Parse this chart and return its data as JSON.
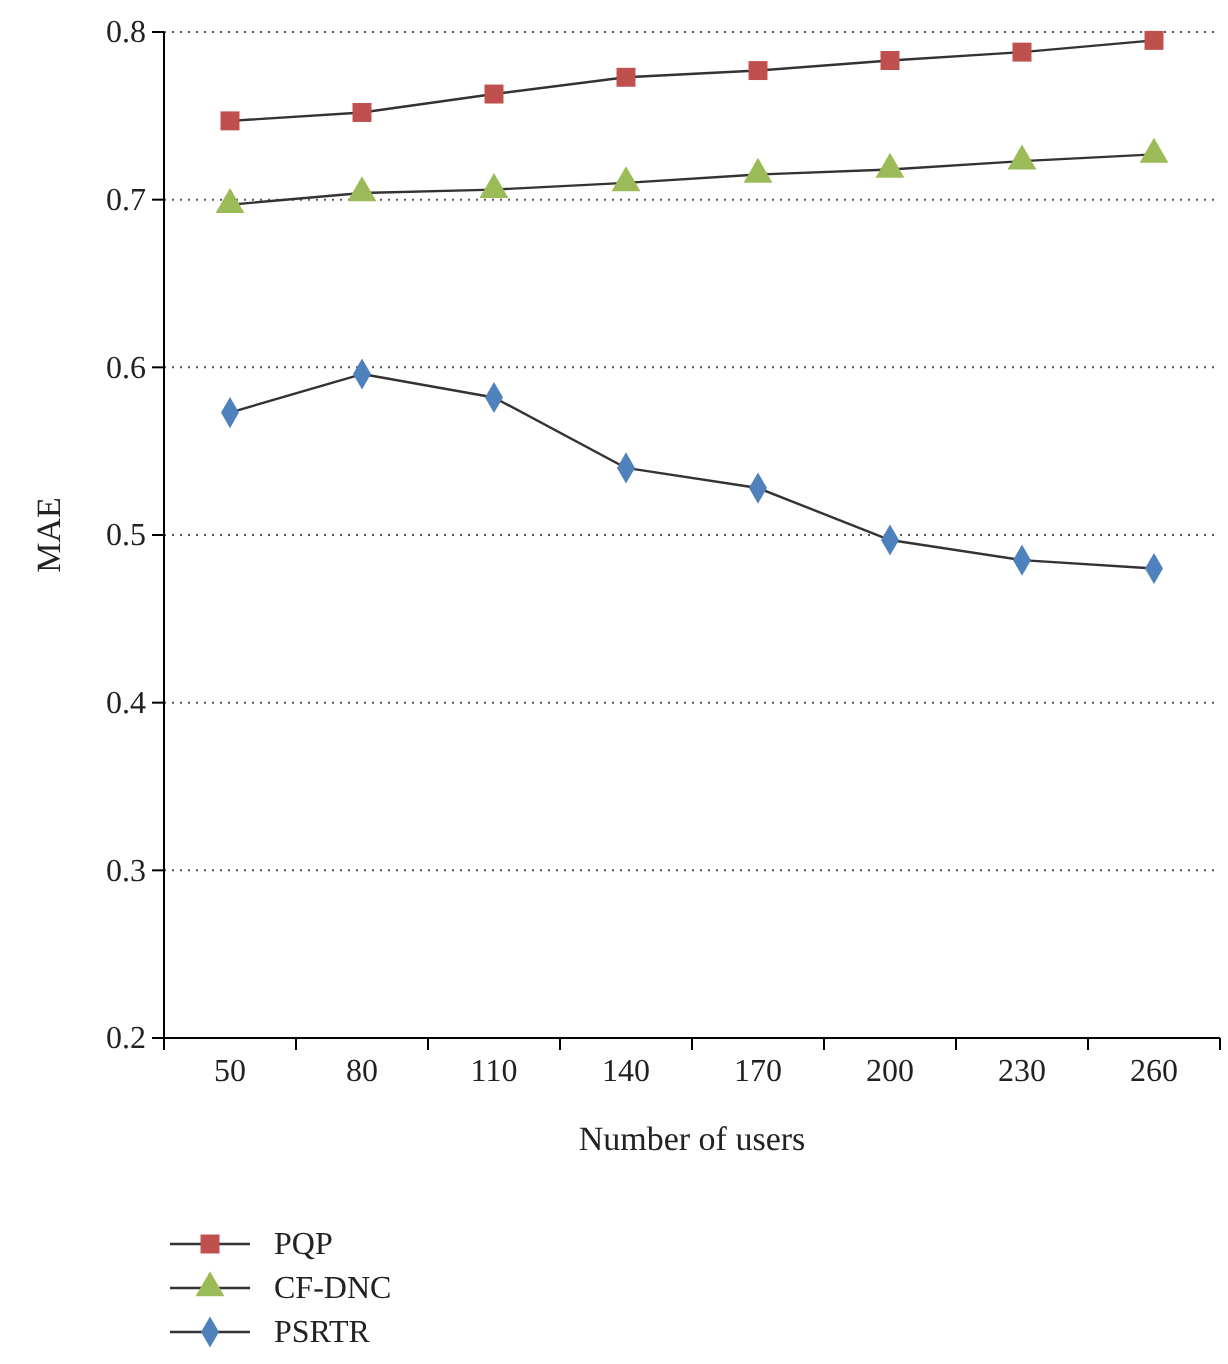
{
  "chart_data": {
    "type": "line",
    "xlabel": "Number of users",
    "ylabel": "MAE",
    "categories": [
      "50",
      "80",
      "110",
      "140",
      "170",
      "200",
      "230",
      "260"
    ],
    "series": [
      {
        "name": "PQP",
        "color": "#c0504d",
        "marker": "square",
        "values": [
          0.747,
          0.752,
          0.763,
          0.773,
          0.777,
          0.783,
          0.788,
          0.795
        ]
      },
      {
        "name": "CF-DNC",
        "color": "#9bbb59",
        "marker": "triangle",
        "values": [
          0.697,
          0.704,
          0.706,
          0.71,
          0.715,
          0.718,
          0.723,
          0.727
        ]
      },
      {
        "name": "PSRTR",
        "color": "#4f81bd",
        "marker": "diamond",
        "values": [
          0.573,
          0.596,
          0.582,
          0.54,
          0.528,
          0.497,
          0.485,
          0.48
        ]
      }
    ],
    "ylim": [
      0.2,
      0.8
    ],
    "yticks": [
      {
        "value": 0.2,
        "label": "0.2"
      },
      {
        "value": 0.3,
        "label": "0.3"
      },
      {
        "value": 0.4,
        "label": "0.4"
      },
      {
        "value": 0.5,
        "label": "0.5"
      },
      {
        "value": 0.6,
        "label": "0.6"
      },
      {
        "value": 0.7,
        "label": "0.7"
      },
      {
        "value": 0.8,
        "label": "0.8"
      }
    ],
    "grid": "y",
    "legend": "bottom",
    "line_style": "solid"
  }
}
